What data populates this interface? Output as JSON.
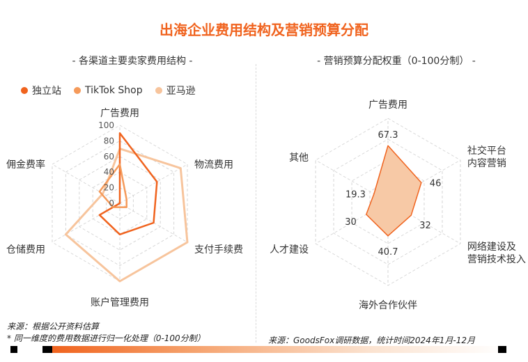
{
  "title": "出海企业费用结构及营销预算分配",
  "colors": {
    "accent": "#f0631e",
    "series": [
      "#f0631e",
      "#f59a5a",
      "#f7c49c"
    ],
    "right_fill": "#f7c9a6",
    "right_stroke": "#f0631e"
  },
  "left_chart": {
    "subtitle": "- 各渠道主要卖家费用结构 -"
  },
  "right_chart": {
    "subtitle": "- 营销预算分配权重（0-100分制） -"
  },
  "notes": {
    "left_source": "来源：根据公开资料估算",
    "left_note": "* 同一维度的费用数据进行归一化处理（0-100分制）",
    "right_source": "来源：GoodsFox调研数据，统计时间2024年1月-12月"
  },
  "chart_data": [
    {
      "type": "radar",
      "title": "各渠道主要卖家费用结构",
      "axes": [
        "广告费用",
        "物流费用",
        "支付手续费",
        "账户管理费用",
        "仓储费用",
        "佣金费率"
      ],
      "range": [
        0,
        100
      ],
      "ticks": [
        "100",
        "80",
        "60",
        "40",
        "20",
        "0"
      ],
      "legend_position": "top-left",
      "series": [
        {
          "name": "独立站",
          "values": [
            90,
            55,
            50,
            40,
            30,
            0
          ]
        },
        {
          "name": "TikTok Shop",
          "values": [
            50,
            10,
            10,
            5,
            10,
            30
          ]
        },
        {
          "name": "亚马逊",
          "values": [
            70,
            90,
            100,
            100,
            80,
            25
          ]
        }
      ]
    },
    {
      "type": "radar",
      "title": "营销预算分配权重（0-100分制）",
      "axes": [
        "广告费用",
        "社交平台内容营销",
        "网络建设及营销技术投入",
        "海外合作伙伴",
        "人才建设",
        "其他"
      ],
      "axis_labels": [
        [
          "广告费用"
        ],
        [
          "社交平台",
          "内容营销"
        ],
        [
          "网络建设及",
          "营销技术投入"
        ],
        [
          "海外合作伙伴"
        ],
        [
          "人才建设"
        ],
        [
          "其他"
        ]
      ],
      "range": [
        0,
        100
      ],
      "series": [
        {
          "values": [
            67.3,
            46,
            32,
            40.7,
            30,
            19.3
          ],
          "labels": [
            "67.3",
            "46",
            "32",
            "40.7",
            "30",
            "19.3"
          ]
        }
      ]
    }
  ]
}
